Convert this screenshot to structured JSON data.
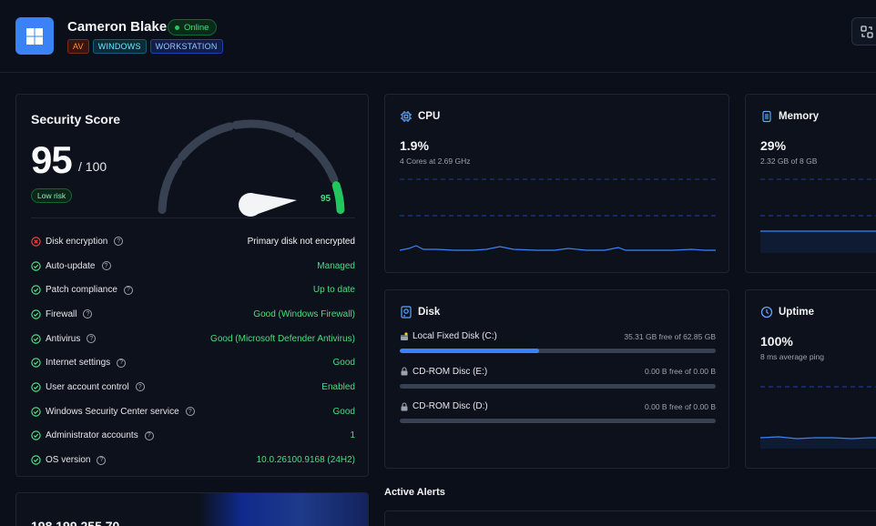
{
  "device": {
    "name": "Cameron Blake",
    "status": "Online",
    "tags": [
      "AV",
      "WINDOWS",
      "WORKSTATION"
    ],
    "os_icon": "windows-logo"
  },
  "security": {
    "title": "Security Score",
    "score": "95",
    "max": "/ 100",
    "score_fraction": 0.95,
    "gauge_label": "95",
    "risk": "Low risk",
    "checks": [
      {
        "label": "Disk encryption",
        "value": "Primary disk not encrypted",
        "status": "fail"
      },
      {
        "label": "Auto-update",
        "value": "Managed",
        "status": "pass"
      },
      {
        "label": "Patch compliance",
        "value": "Up to date",
        "status": "pass"
      },
      {
        "label": "Firewall",
        "value": "Good (Windows Firewall)",
        "status": "pass"
      },
      {
        "label": "Antivirus",
        "value": "Good (Microsoft Defender Antivirus)",
        "status": "pass"
      },
      {
        "label": "Internet settings",
        "value": "Good",
        "status": "pass"
      },
      {
        "label": "User account control",
        "value": "Enabled",
        "status": "pass"
      },
      {
        "label": "Windows Security Center service",
        "value": "Good",
        "status": "pass"
      },
      {
        "label": "Administrator accounts",
        "value": "1",
        "status": "pass"
      },
      {
        "label": "OS version",
        "value": "10.0.26100.9168 (24H2)",
        "status": "pass"
      }
    ]
  },
  "cpu": {
    "title": "CPU",
    "value": "1.9%",
    "sub": "4 Cores at 2.69 GHz"
  },
  "memory": {
    "title": "Memory",
    "value": "29%",
    "sub": "2.32 GB of 8 GB"
  },
  "disk": {
    "title": "Disk",
    "items": [
      {
        "name": "Local Fixed Disk (C:)",
        "free": "35.31 GB free of 62.85 GB",
        "used_fraction": 0.44
      },
      {
        "name": "CD-ROM Disc (E:)",
        "free": "0.00 B free of 0.00 B",
        "used_fraction": 0
      },
      {
        "name": "CD-ROM Disc (D:)",
        "free": "0.00 B free of 0.00 B",
        "used_fraction": 0
      }
    ]
  },
  "uptime": {
    "title": "Uptime",
    "value": "100%",
    "sub": "8 ms average ping"
  },
  "alerts": {
    "title": "Active Alerts"
  },
  "network": {
    "ip": "198.199.255.70"
  },
  "colors": {
    "accent": "#3b82f6",
    "good": "#4ade80",
    "bad": "#ef4444"
  }
}
